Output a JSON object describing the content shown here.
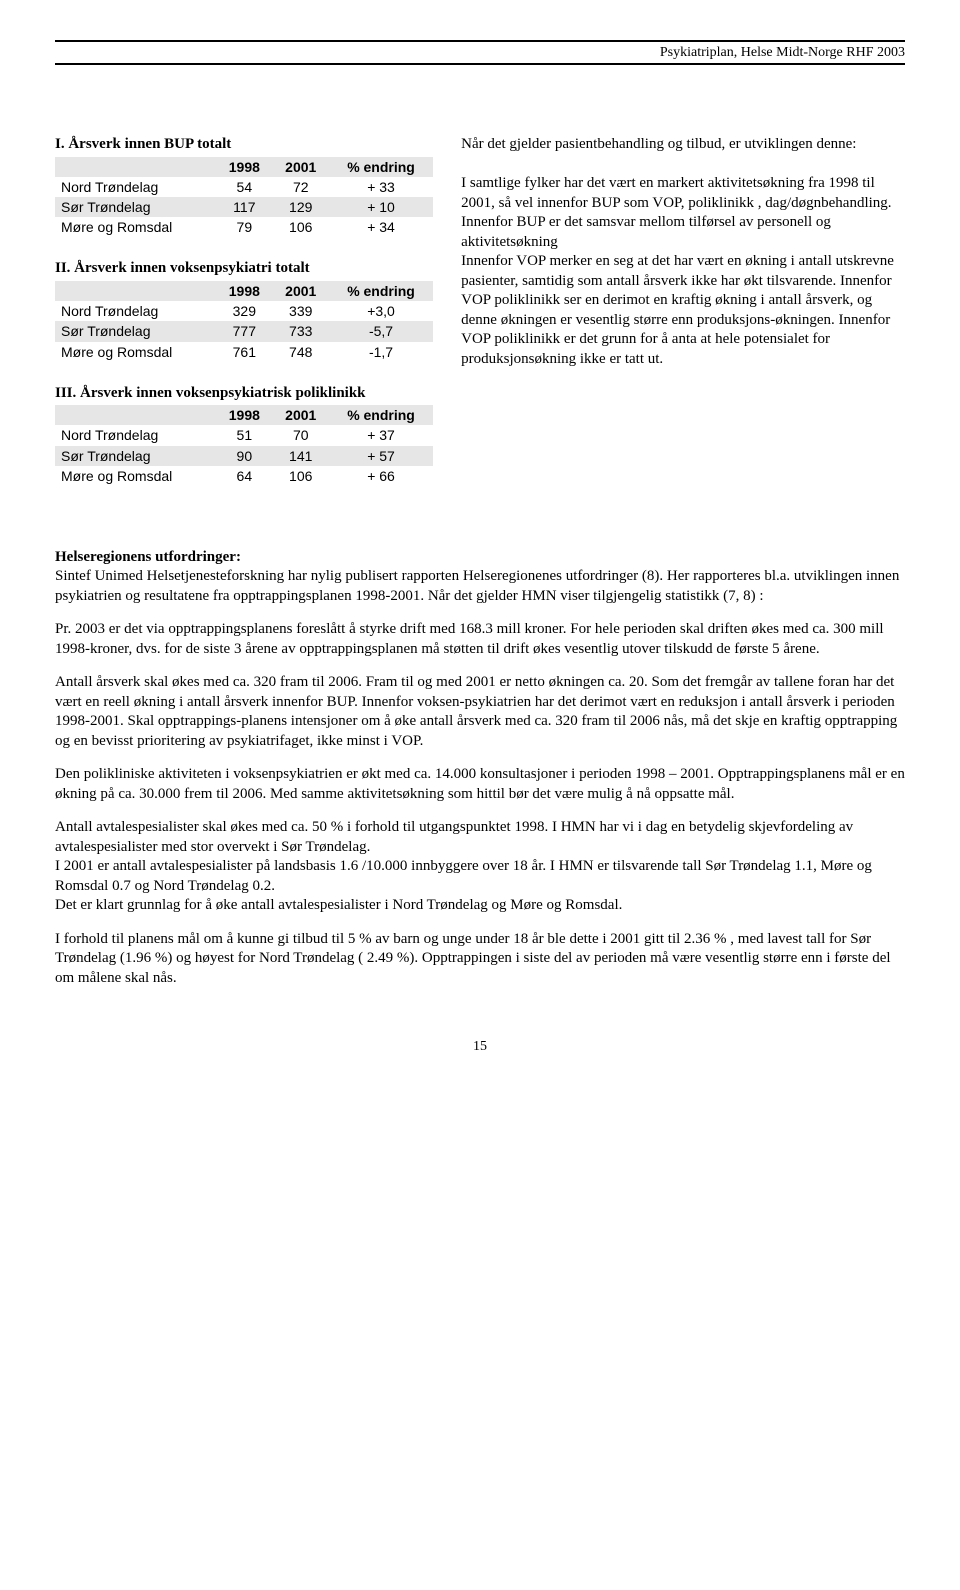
{
  "header": "Psykiatriplan, Helse Midt-Norge RHF 2003",
  "table1": {
    "title": "I. Årsverk innen BUP totalt",
    "headers": [
      "",
      "1998",
      "2001",
      "% endring"
    ],
    "rows": [
      [
        "Nord Trøndelag",
        "54",
        "72",
        "+ 33"
      ],
      [
        "Sør Trøndelag",
        "117",
        "129",
        "+ 10"
      ],
      [
        "Møre og Romsdal",
        "79",
        "106",
        "+ 34"
      ]
    ]
  },
  "table2": {
    "title": "II. Årsverk innen voksenpsykiatri totalt",
    "headers": [
      "",
      "1998",
      "2001",
      "% endring"
    ],
    "rows": [
      [
        "Nord Trøndelag",
        "329",
        "339",
        "+3,0"
      ],
      [
        "Sør Trøndelag",
        "777",
        "733",
        "-5,7"
      ],
      [
        "Møre og Romsdal",
        "761",
        "748",
        "-1,7"
      ]
    ]
  },
  "table3": {
    "title": "III. Årsverk innen voksenpsykiatrisk poliklinikk",
    "headers": [
      "",
      "1998",
      "2001",
      "% endring"
    ],
    "rows": [
      [
        "Nord Trøndelag",
        "51",
        "70",
        "+ 37"
      ],
      [
        "Sør Trøndelag",
        "90",
        "141",
        "+ 57"
      ],
      [
        "Møre og Romsdal",
        "64",
        "106",
        "+ 66"
      ]
    ]
  },
  "rightcol": {
    "p1": "Når det gjelder pasientbehandling og tilbud, er utviklingen denne:",
    "p2": "I samtlige fylker har det vært en markert aktivitetsøkning fra 1998 til 2001, så vel innenfor BUP som VOP, poliklinikk , dag/døgnbehandling.",
    "p3": "Innenfor BUP er det samsvar mellom tilførsel av personell og aktivitetsøkning",
    "p4": "Innenfor VOP merker en seg at det har vært en økning i antall utskrevne pasienter, samtidig som antall årsverk ikke har økt tilsvarende. Innenfor VOP poliklinikk ser en derimot en kraftig økning i antall årsverk, og denne økningen er vesentlig større enn produksjons-økningen. Innenfor VOP poliklinikk er det grunn for å anta at hele  potensialet for produksjonsøkning ikke er tatt ut."
  },
  "body": {
    "heading": "Helseregionens utfordringer:",
    "p1": "Sintef Unimed Helsetjenesteforskning har nylig publisert rapporten Helseregionenes utfordringer (8). Her rapporteres  bl.a. utviklingen innen psykiatrien og resultatene fra opptrappingsplanen 1998-2001. Når det gjelder HMN viser tilgjengelig statistikk (7, 8) :",
    "p2": "Pr. 2003 er det via opptrappingsplanens foreslått å styrke drift med 168.3 mill kroner. For hele perioden skal driften økes med ca. 300 mill 1998-kroner, dvs.  for de siste 3 årene av opptrappingsplanen må støtten til drift økes vesentlig utover tilskudd de første 5 årene.",
    "p3": "Antall årsverk skal økes med ca. 320 fram til 2006. Fram til og med 2001 er netto økningen ca. 20. Som det fremgår av tallene foran har det vært en reell økning i antall årsverk innenfor BUP. Innenfor voksen-psykiatrien har det derimot vært en reduksjon i antall årsverk i perioden 1998-2001. Skal opptrappings-planens intensjoner om å øke antall årsverk med ca. 320 fram til 2006 nås,  må det skje en kraftig opptrapping og en bevisst prioritering av psykiatrifaget, ikke minst i VOP.",
    "p4": "Den polikliniske aktiviteten i voksenpsykiatrien er økt med ca. 14.000 konsultasjoner i perioden 1998 – 2001. Opptrappingsplanens mål er en økning på ca. 30.000 frem til 2006. Med samme aktivitetsøkning som hittil bør det være mulig å nå oppsatte mål.",
    "p5": "Antall avtalespesialister skal økes med ca. 50 % i forhold til utgangspunktet 1998. I HMN har vi i dag en betydelig skjevfordeling av avtalespesialister med stor overvekt i Sør Trøndelag.",
    "p5b": "I 2001 er antall avtalespesialister på landsbasis 1.6 /10.000 innbyggere over 18 år. I HMN er tilsvarende tall  Sør Trøndelag 1.1, Møre og Romsdal 0.7 og Nord Trøndelag 0.2.",
    "p5c": "Det er klart grunnlag for å øke antall avtalespesialister  i Nord Trøndelag og Møre og Romsdal.",
    "p6": "I forhold til planens mål om å kunne gi tilbud til 5 % av barn og unge under 18 år ble dette i 2001 gitt til 2.36 % , med lavest tall for Sør Trøndelag (1.96 %) og høyest for Nord Trøndelag ( 2.49 %). Opptrappingen i siste del av perioden må være vesentlig større enn i første del om målene skal nås."
  },
  "pageNumber": "15"
}
